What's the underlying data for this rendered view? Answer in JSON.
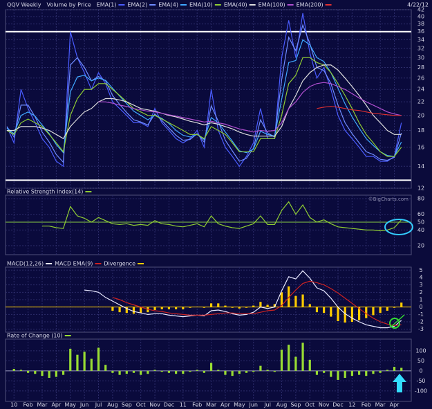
{
  "chart_data": [
    {
      "type": "line",
      "title": "QQV Weekly",
      "overlay_label": "Volume by Price",
      "date": "4/22/12",
      "log_scale": true,
      "grid": true,
      "x": [
        -0.5,
        0,
        0.5,
        1,
        1.5,
        2,
        2.5,
        3,
        3.5,
        4,
        4.5,
        5,
        5.5,
        6,
        6.5,
        7,
        7.5,
        8,
        8.5,
        9,
        9.5,
        10,
        10.5,
        11,
        11.5,
        12,
        12.5,
        13,
        13.5,
        14,
        14.5,
        15,
        15.5,
        16,
        16.5,
        17,
        17.5,
        18,
        18.5,
        19,
        19.5,
        20,
        20.5,
        21,
        21.5,
        22,
        22.5,
        23,
        23.5,
        24,
        24.5,
        25,
        25.5,
        26,
        26.5,
        27,
        27.5
      ],
      "xlim": [
        -0.6,
        28.2
      ],
      "ylim": [
        12,
        42
      ],
      "yticks": [
        12,
        14,
        16,
        18,
        20,
        22,
        24,
        26,
        28,
        30,
        32,
        34,
        36,
        38,
        40,
        42
      ],
      "hlines": [
        36,
        12.7
      ],
      "hline_color": "#ffffff",
      "series": [
        {
          "name": "EMA(1)",
          "color": "#4a5cff",
          "values": [
            18.5,
            16.5,
            24,
            21,
            19,
            17,
            16,
            14.5,
            14,
            36,
            30,
            27,
            24,
            27,
            25,
            22,
            21,
            20,
            19,
            19,
            18.5,
            21,
            19,
            18,
            17,
            16.5,
            17,
            18,
            16,
            24,
            18,
            16,
            15,
            14,
            15,
            16.5,
            21,
            17,
            17,
            30,
            39,
            30,
            41,
            31,
            26,
            28,
            24,
            20,
            18,
            17,
            16,
            15,
            15,
            14.5,
            14.5,
            15,
            19
          ]
        },
        {
          "name": "EMA(2)",
          "color": "#6f8cff",
          "values": [
            18.5,
            17.2,
            21.5,
            21.5,
            19.8,
            17.8,
            16.6,
            15.2,
            14.4,
            28.5,
            30,
            28,
            25.5,
            26.3,
            25.5,
            23,
            21.6,
            20.4,
            19.4,
            19.1,
            18.7,
            20.2,
            19.3,
            18.3,
            17.4,
            16.8,
            16.9,
            17.6,
            16.6,
            21.4,
            19.2,
            16.8,
            15.6,
            14.5,
            14.8,
            15.9,
            19.4,
            17.7,
            17.2,
            25.7,
            34.6,
            31.5,
            37.7,
            33.1,
            28,
            27.4,
            25,
            21.5,
            19,
            17.6,
            16.5,
            15.5,
            15.2,
            14.7,
            14.6,
            14.9,
            17.7
          ]
        },
        {
          "name": "EMA(4)",
          "color": "#3fa8ff",
          "values": [
            18.3,
            17.6,
            20,
            20.5,
            19.9,
            18.7,
            17.6,
            16.3,
            15.4,
            23.6,
            26.2,
            26.5,
            25.5,
            26,
            25.6,
            24.2,
            22.9,
            21.7,
            20.6,
            20,
            19.4,
            20,
            19.6,
            18.9,
            18,
            17.4,
            17.2,
            17.5,
            16.9,
            19.7,
            19,
            17.8,
            16.7,
            15.6,
            15.4,
            15.8,
            17.9,
            17.5,
            17.3,
            22.4,
            29,
            29.4,
            34,
            32.8,
            30,
            29.2,
            27,
            24.2,
            21.7,
            19.8,
            18.3,
            17,
            16.2,
            15.5,
            15.1,
            15,
            16.6
          ]
        },
        {
          "name": "EMA(10)",
          "color": "#8fcc33",
          "values": [
            18,
            17.5,
            19,
            19.5,
            19,
            18.5,
            17.5,
            16.5,
            15.5,
            20,
            22.5,
            24,
            24,
            25,
            25,
            24,
            23,
            22,
            21,
            20.5,
            20,
            20,
            19.5,
            19,
            18.5,
            18,
            17.5,
            17.5,
            17,
            18.5,
            18,
            17.5,
            16.5,
            15.5,
            15.5,
            15.5,
            17,
            17,
            17,
            20,
            25,
            26.5,
            30,
            30,
            29,
            28.5,
            27,
            25,
            23,
            21,
            19,
            17.5,
            16.5,
            15.5,
            15,
            15,
            16
          ]
        },
        {
          "name": "EMA(40)",
          "color": "#dddddd",
          "values": [
            18,
            18,
            18.5,
            18.5,
            18.5,
            18.3,
            18,
            17.5,
            17,
            18.5,
            19.5,
            20.5,
            21,
            22,
            22.5,
            22.5,
            22.3,
            22,
            21.5,
            21,
            20.8,
            20.6,
            20.3,
            20,
            19.8,
            19.5,
            19.2,
            19,
            18.7,
            19,
            18.8,
            18.5,
            18.2,
            17.8,
            17.5,
            17.3,
            17.3,
            17.3,
            17.3,
            18.5,
            21,
            23,
            25.5,
            27,
            28,
            28.5,
            28.5,
            27.5,
            26,
            24.5,
            23,
            21.5,
            20,
            19,
            18,
            17.5,
            17.5
          ]
        },
        {
          "name": "EMA(100)",
          "color": "#b04fd0",
          "values": [
            null,
            null,
            null,
            null,
            null,
            null,
            null,
            null,
            null,
            null,
            null,
            null,
            null,
            22,
            22,
            21.8,
            21.5,
            21.3,
            21,
            20.8,
            20.6,
            20.5,
            20.3,
            20.1,
            19.9,
            19.7,
            19.5,
            19.3,
            19.1,
            19.2,
            19,
            18.8,
            18.5,
            18.2,
            18,
            17.8,
            18,
            17.9,
            18,
            19,
            21,
            22,
            23.5,
            24.5,
            25,
            25.2,
            25,
            24.5,
            24,
            23.3,
            22.6,
            22,
            21.5,
            21,
            20.5,
            20.2,
            20
          ]
        },
        {
          "name": "EMA(200)",
          "color": "#e03030",
          "values": [
            null,
            null,
            null,
            null,
            null,
            null,
            null,
            null,
            null,
            null,
            null,
            null,
            null,
            null,
            null,
            null,
            null,
            null,
            null,
            null,
            null,
            null,
            null,
            null,
            null,
            null,
            null,
            null,
            null,
            null,
            null,
            null,
            null,
            null,
            null,
            null,
            null,
            null,
            null,
            null,
            null,
            null,
            null,
            null,
            21,
            21.2,
            21.3,
            21.2,
            21,
            20.8,
            20.7,
            20.5,
            20.3,
            20.2,
            20.1,
            20,
            20
          ]
        }
      ]
    },
    {
      "type": "line",
      "watermark": "©BigCharts.com",
      "grid": true,
      "ylim": [
        8.5,
        84.5
      ],
      "yticks": [
        20,
        40,
        50,
        60,
        80
      ],
      "hlines": [
        50
      ],
      "hline_color": "#88cc44",
      "series": [
        {
          "name": "Relative Strength Index(14)",
          "color": "#8fcc33",
          "values": [
            null,
            null,
            null,
            null,
            null,
            45,
            45,
            43,
            42,
            70,
            58,
            55,
            50,
            56,
            52,
            48,
            47,
            48,
            46,
            47,
            46,
            52,
            48,
            47,
            45,
            44,
            46,
            48,
            44,
            58,
            48,
            45,
            43,
            42,
            45,
            48,
            58,
            47,
            47,
            65,
            76,
            60,
            72,
            56,
            50,
            53,
            48,
            44,
            43,
            42,
            41,
            40,
            40,
            39,
            40,
            43,
            53
          ]
        }
      ]
    },
    {
      "type": "line",
      "grid": true,
      "ylim": [
        -3.4,
        5.4
      ],
      "yticks": [
        -3,
        -2,
        -1,
        0,
        1,
        2,
        3,
        4,
        5
      ],
      "hlines": [
        0
      ],
      "hline_color": "#ffcc00",
      "series": [
        {
          "name": "MACD(12,26)",
          "color": "#e8e8ff",
          "values": [
            null,
            null,
            null,
            null,
            null,
            null,
            null,
            null,
            null,
            null,
            null,
            2.3,
            2.2,
            2,
            1.3,
            0.8,
            0.3,
            -0.2,
            -0.6,
            -0.8,
            -1,
            -0.9,
            -0.9,
            -1.1,
            -1.2,
            -1.3,
            -1.2,
            -1.1,
            -1.2,
            -0.5,
            -0.4,
            -0.6,
            -0.9,
            -1.1,
            -1,
            -0.7,
            0,
            -0.2,
            0,
            2.2,
            4.1,
            3.8,
            4.9,
            3.9,
            2.6,
            2.2,
            1.2,
            0,
            -0.9,
            -1.5,
            -2,
            -2.4,
            -2.6,
            -2.8,
            -2.8,
            -2.6,
            -1.8
          ]
        },
        {
          "name": "MACD EMA(9)",
          "color": "#cc2222",
          "values": [
            null,
            null,
            null,
            null,
            null,
            null,
            null,
            null,
            null,
            null,
            null,
            null,
            null,
            null,
            null,
            1.3,
            1,
            0.6,
            0.3,
            0,
            -0.3,
            -0.5,
            -0.6,
            -0.8,
            -0.9,
            -1,
            -1.1,
            -1.1,
            -1.1,
            -1,
            -0.9,
            -0.8,
            -0.8,
            -0.9,
            -0.9,
            -0.9,
            -0.7,
            -0.5,
            -0.4,
            0.2,
            1.3,
            2.3,
            3.2,
            3.5,
            3.3,
            3,
            2.5,
            1.9,
            1.2,
            0.5,
            -0.2,
            -0.9,
            -1.5,
            -2,
            -2.3,
            -2.5,
            -2.4
          ]
        },
        {
          "name": "Divergence",
          "color": "#ffcc00",
          "style": "bar",
          "values": [
            null,
            null,
            null,
            null,
            null,
            null,
            null,
            null,
            null,
            null,
            null,
            null,
            null,
            null,
            null,
            -0.5,
            -0.7,
            -0.8,
            -0.9,
            -0.8,
            -0.7,
            -0.4,
            -0.3,
            -0.3,
            -0.3,
            -0.3,
            -0.1,
            0,
            -0.1,
            0.5,
            0.5,
            0.2,
            -0.1,
            -0.2,
            -0.1,
            0.2,
            0.7,
            0.3,
            0.4,
            2,
            2.8,
            1.5,
            1.7,
            0.4,
            -0.7,
            -0.8,
            -1.3,
            -1.9,
            -2.1,
            -2,
            -1.8,
            -1.5,
            -1.1,
            -0.8,
            -0.5,
            -0.1,
            0.6
          ]
        }
      ]
    },
    {
      "type": "bar",
      "grid": true,
      "ylim": [
        -152,
        158
      ],
      "yticks": [
        -100,
        -50,
        0,
        50,
        100
      ],
      "hlines": [
        0
      ],
      "hline_color": "#9999bb",
      "xticks": [
        {
          "value": 0,
          "label": "10"
        },
        {
          "value": 1,
          "label": "Feb"
        },
        {
          "value": 2,
          "label": "Mar"
        },
        {
          "value": 3,
          "label": "Apr"
        },
        {
          "value": 4,
          "label": "May"
        },
        {
          "value": 5,
          "label": "Jun"
        },
        {
          "value": 6,
          "label": "Jul"
        },
        {
          "value": 7,
          "label": "Aug"
        },
        {
          "value": 8,
          "label": "Sep"
        },
        {
          "value": 9,
          "label": "Oct"
        },
        {
          "value": 10,
          "label": "Nov"
        },
        {
          "value": 11,
          "label": "Dec"
        },
        {
          "value": 12,
          "label": "11"
        },
        {
          "value": 13,
          "label": "Feb"
        },
        {
          "value": 14,
          "label": "Mar"
        },
        {
          "value": 15,
          "label": "Apr"
        },
        {
          "value": 16,
          "label": "May"
        },
        {
          "value": 17,
          "label": "Jun"
        },
        {
          "value": 18,
          "label": "Jul"
        },
        {
          "value": 19,
          "label": "Aug"
        },
        {
          "value": 20,
          "label": "Sep"
        },
        {
          "value": 21,
          "label": "Oct"
        },
        {
          "value": 22,
          "label": "Nov"
        },
        {
          "value": 23,
          "label": "Dec"
        },
        {
          "value": 24,
          "label": "12"
        },
        {
          "value": 25,
          "label": "Feb"
        },
        {
          "value": 26,
          "label": "Mar"
        },
        {
          "value": 27,
          "label": "Apr"
        }
      ],
      "series": [
        {
          "name": "Rate of Change (10)",
          "color": "#99dd33",
          "values": [
            null,
            10,
            5,
            -10,
            -15,
            -25,
            -35,
            -30,
            -20,
            110,
            80,
            95,
            60,
            115,
            30,
            -10,
            -20,
            -15,
            -10,
            -20,
            -15,
            5,
            -5,
            -10,
            -15,
            -15,
            -5,
            5,
            -10,
            40,
            5,
            -20,
            -25,
            -15,
            -10,
            -5,
            25,
            5,
            -5,
            105,
            130,
            70,
            140,
            55,
            -20,
            -10,
            -30,
            -45,
            -35,
            -25,
            -20,
            -25,
            -15,
            -10,
            5,
            20,
            15
          ]
        }
      ]
    }
  ]
}
